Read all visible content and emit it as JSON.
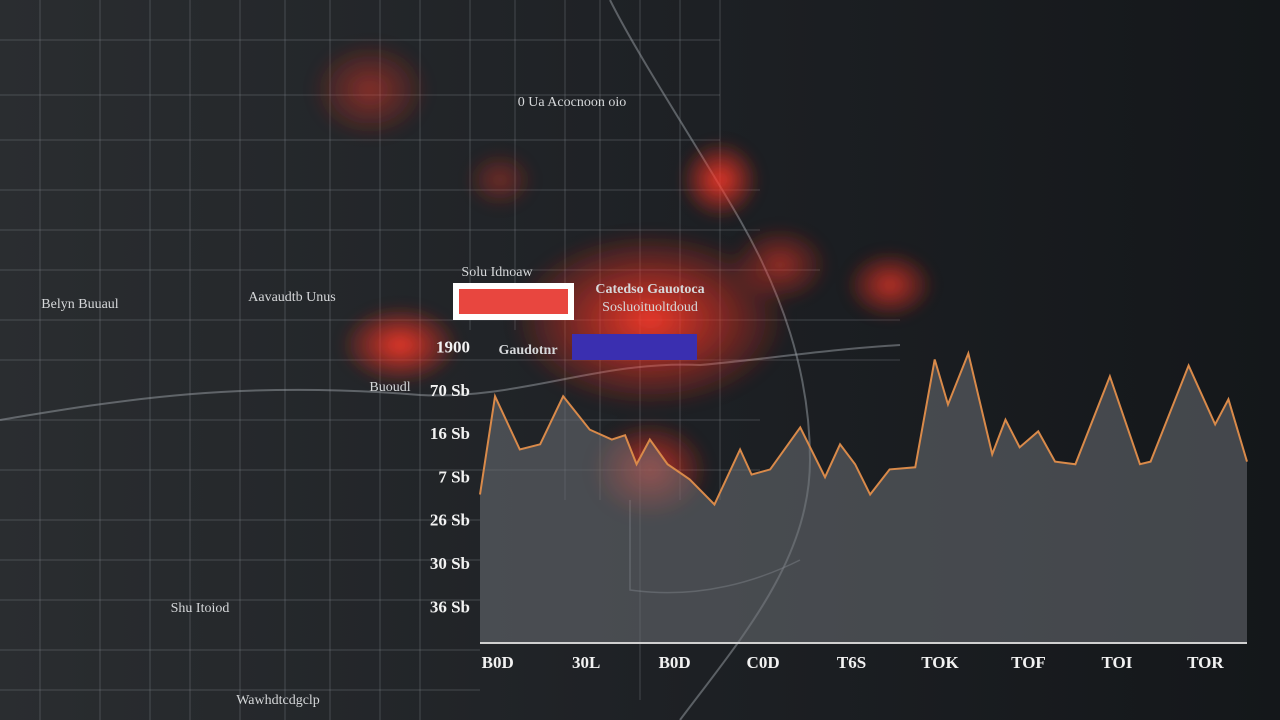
{
  "map_labels": [
    "0 Ua Acocnoon oio",
    "Belyn Buuaul",
    "Aavaudtb Unus",
    "Shu Itoiod",
    "Wawhdtcdgclp",
    "Buoudl"
  ],
  "legend": {
    "title": "Solu Idnoaw",
    "items": [
      {
        "label": "Catedso Gauotoca"
      },
      {
        "label": "Sosluoituoltdoud"
      },
      {
        "label": "Gaudotnr"
      }
    ]
  },
  "chart_data": {
    "type": "area",
    "x": [
      -0.2,
      -0.03,
      0.25,
      0.48,
      0.74,
      1.04,
      1.29,
      1.44,
      1.57,
      1.72,
      1.92,
      2.17,
      2.45,
      2.74,
      2.87,
      3.08,
      3.42,
      3.7,
      3.87,
      4.04,
      4.21,
      4.43,
      4.72,
      4.94,
      5.09,
      5.32,
      5.59,
      5.74,
      5.9,
      6.11,
      6.3,
      6.53,
      6.92,
      7.26,
      7.38,
      7.81,
      8.11,
      8.26,
      8.47
    ],
    "series": [
      {
        "color": "#d98a4a",
        "values": [
          3.63,
          5.9,
          4.67,
          4.79,
          5.9,
          5.13,
          4.9,
          5.0,
          4.33,
          4.9,
          4.33,
          3.98,
          3.4,
          4.67,
          4.09,
          4.21,
          5.18,
          4.03,
          4.79,
          4.33,
          3.63,
          4.21,
          4.26,
          6.75,
          5.71,
          6.89,
          4.56,
          5.36,
          4.72,
          5.09,
          4.39,
          4.33,
          6.36,
          4.33,
          4.39,
          6.61,
          5.25,
          5.83,
          4.39
        ]
      }
    ],
    "xlim": [
      -0.2,
      8.47
    ],
    "xticks": [
      {
        "value": 0,
        "label": "B0D"
      },
      {
        "value": 1,
        "label": "30L"
      },
      {
        "value": 2,
        "label": "B0D"
      },
      {
        "value": 3,
        "label": "C0D"
      },
      {
        "value": 4,
        "label": "T6S"
      },
      {
        "value": 5,
        "label": "TOK"
      },
      {
        "value": 6,
        "label": "TOF"
      },
      {
        "value": 7,
        "label": "TOI"
      },
      {
        "value": 8,
        "label": "TOR"
      }
    ],
    "ylim": [
      0.2,
      7.2
    ],
    "yticks": [
      {
        "value": 1,
        "label": "36 Sb"
      },
      {
        "value": 2,
        "label": "30 Sb"
      },
      {
        "value": 3,
        "label": "26 Sb"
      },
      {
        "value": 4,
        "label": "7 Sb"
      },
      {
        "value": 5,
        "label": "16 Sb"
      },
      {
        "value": 6,
        "label": "70 Sb"
      },
      {
        "value": 7,
        "label": "1900"
      }
    ],
    "grid": false
  }
}
